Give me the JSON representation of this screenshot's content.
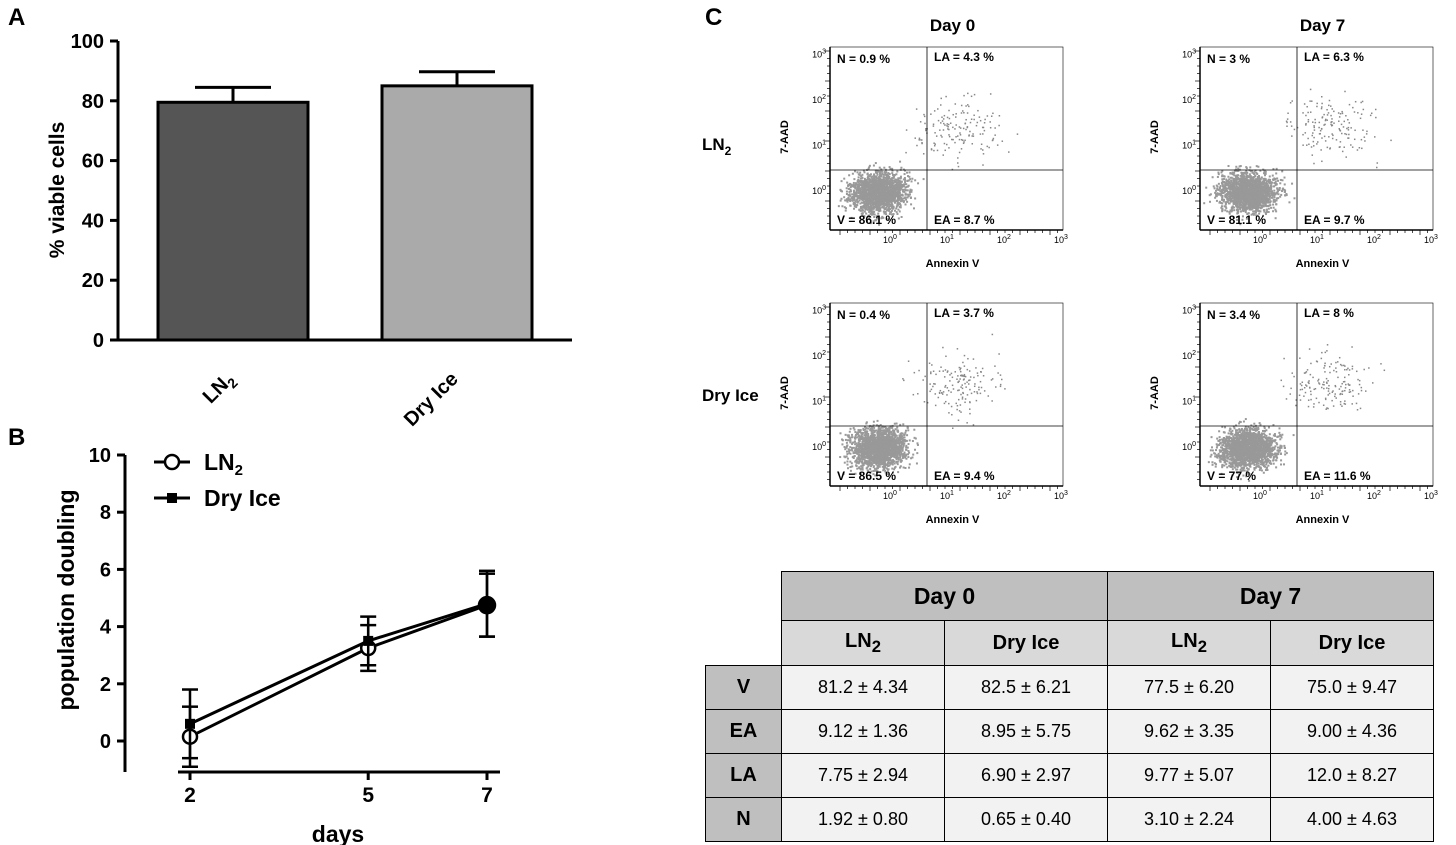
{
  "panels": {
    "a": "A",
    "b": "B",
    "c": "C"
  },
  "chart_data": [
    {
      "type": "bar",
      "categories": [
        "LN2",
        "Dry Ice"
      ],
      "values": [
        79.5,
        85.0
      ],
      "errors": [
        5.0,
        4.7
      ],
      "colors": [
        "#555555",
        "#aaaaaa"
      ],
      "ylabel": "% viable cells",
      "ylim": [
        0,
        100
      ],
      "yticks": [
        "0",
        "20",
        "40",
        "60",
        "80",
        "100"
      ],
      "grid": false
    },
    {
      "type": "line",
      "x": [
        2,
        5,
        7
      ],
      "xticks": [
        "2",
        "5",
        "7"
      ],
      "yticks": [
        "0",
        "2",
        "4",
        "6",
        "8",
        "10"
      ],
      "xlabel": "days",
      "ylabel": "population doubling",
      "ylim": [
        0,
        10
      ],
      "series": [
        {
          "name": "LN2",
          "marker": "open-circle",
          "values": [
            0.15,
            3.25,
            4.75
          ],
          "errors": [
            1.05,
            0.8,
            1.1
          ]
        },
        {
          "name": "Dry Ice",
          "marker": "filled-square",
          "values": [
            0.6,
            3.5,
            4.8
          ],
          "errors": [
            1.2,
            0.85,
            1.15
          ]
        }
      ],
      "legend_position": "top-left"
    },
    {
      "type": "scatter",
      "title_columns": [
        "Day 0",
        "Day 7"
      ],
      "row_labels": [
        "LN2",
        "Dry Ice"
      ],
      "xlabel": "Annexin V",
      "ylabel": "7-AAD",
      "scale": "log",
      "tick_labels": [
        "10",
        "10",
        "10",
        "10"
      ],
      "tick_exponents": [
        "0",
        "1",
        "2",
        "3"
      ],
      "plots": [
        {
          "N": "N = 0.9 %",
          "LA": "LA = 4.3 %",
          "V": "V = 86.1 %",
          "EA": "EA = 8.7 %"
        },
        {
          "N": "N = 3 %",
          "LA": "LA = 6.3 %",
          "V": "V = 81.1 %",
          "EA": "EA = 9.7 %"
        },
        {
          "N": "N = 0.4 %",
          "LA": "LA = 3.7 %",
          "V": "V = 86.5 %",
          "EA": "EA = 9.4 %"
        },
        {
          "N": "N = 3.4 %",
          "LA": "LA = 8 %",
          "V": "V = 77 %",
          "EA": "EA = 11.6 %"
        }
      ]
    },
    {
      "type": "table",
      "day_headers": [
        "Day 0",
        "Day 7"
      ],
      "sub_headers": [
        "LN",
        "Dry Ice",
        "LN",
        "Dry Ice"
      ],
      "sub_header_subscript": "2",
      "rows": [
        {
          "label": "V",
          "values": [
            "81.2 ± 4.34",
            "82.5 ± 6.21",
            "77.5 ± 6.20",
            "75.0 ± 9.47"
          ]
        },
        {
          "label": "EA",
          "values": [
            "9.12 ± 1.36",
            "8.95 ± 5.75",
            "9.62 ± 3.35",
            "9.00 ± 4.36"
          ]
        },
        {
          "label": "LA",
          "values": [
            "7.75 ± 2.94",
            "6.90 ± 2.97",
            "9.77 ± 5.07",
            "12.0 ± 8.27"
          ]
        },
        {
          "label": "N",
          "values": [
            "1.92 ± 0.80",
            "0.65 ± 0.40",
            "3.10 ± 2.24",
            "4.00 ± 4.63"
          ]
        }
      ]
    }
  ]
}
